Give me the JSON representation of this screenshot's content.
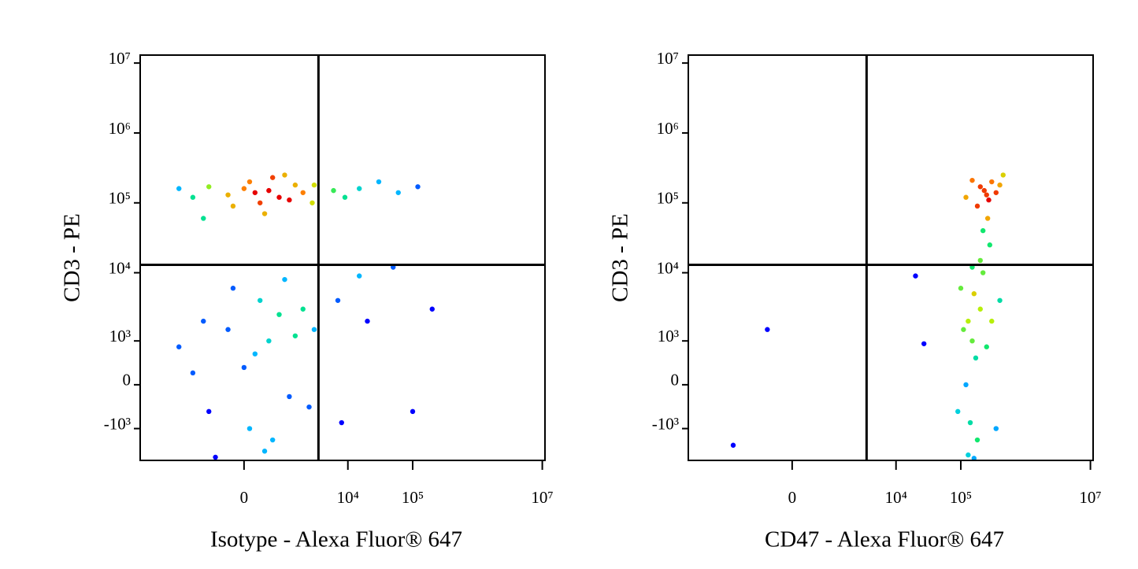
{
  "chart_data": [
    {
      "type": "scatter",
      "xlabel": "Isotype - Alexa Fluor® 647",
      "ylabel": "CD3 - PE",
      "xlim": [
        -10000,
        11000000
      ],
      "ylim": [
        -3000,
        13000000
      ],
      "xticks": [
        0,
        {
          "value": 10000,
          "label": "10⁴"
        },
        {
          "value": 100000,
          "label": "10⁵"
        },
        {
          "value": 10000000,
          "label": "10⁷"
        }
      ],
      "yticks": [
        {
          "value": 10000000,
          "label": "10⁷"
        },
        {
          "value": 1000000,
          "label": "10⁶"
        },
        {
          "value": 100000,
          "label": "10⁵"
        },
        {
          "value": 10000,
          "label": "10⁴"
        },
        {
          "value": 1000,
          "label": "10³"
        },
        0,
        {
          "value": -1000,
          "label": "-10³"
        }
      ],
      "gates": {
        "x": 3500,
        "y": 13000
      },
      "x": [
        200,
        500,
        -300,
        800,
        0,
        1200,
        -800,
        300,
        1500,
        -1500,
        2000,
        100,
        -200,
        600,
        -2500,
        2800,
        400,
        -1000,
        1000,
        3000,
        6000,
        15000,
        30000,
        60000,
        120000,
        9000,
        500,
        200,
        -300,
        800,
        0,
        1200,
        -800,
        300,
        1500,
        -1500,
        2000,
        100,
        -200,
        600,
        -2500,
        2500,
        400,
        -1000,
        1000,
        3000,
        7000,
        15000,
        20000,
        50000,
        8000,
        200000,
        100000,
        -600
      ],
      "y": [
        140000,
        150000,
        130000,
        120000,
        160000,
        110000,
        170000,
        100000,
        180000,
        120000,
        140000,
        200000,
        90000,
        230000,
        160000,
        100000,
        70000,
        60000,
        250000,
        180000,
        150000,
        160000,
        200000,
        140000,
        170000,
        120000,
        1000,
        600,
        1500,
        2500,
        300,
        -200,
        -500,
        4000,
        1200,
        200,
        3000,
        -1000,
        6000,
        -1500,
        800,
        -400,
        -2200,
        2000,
        8000,
        1500,
        4000,
        9000,
        2000,
        12000,
        -800,
        3000,
        -500,
        -2700
      ]
    },
    {
      "type": "scatter",
      "xlabel": "CD47 - Alexa Fluor® 647",
      "ylabel": "CD3 - PE",
      "xlim": [
        -10000,
        11000000
      ],
      "ylim": [
        -3000,
        13000000
      ],
      "xticks": [
        0,
        {
          "value": 10000,
          "label": "10⁴"
        },
        {
          "value": 100000,
          "label": "10⁵"
        },
        {
          "value": 10000000,
          "label": "10⁷"
        }
      ],
      "yticks": [
        {
          "value": 10000000,
          "label": "10⁷"
        },
        {
          "value": 1000000,
          "label": "10⁶"
        },
        {
          "value": 100000,
          "label": "10⁵"
        },
        {
          "value": 10000,
          "label": "10⁴"
        },
        {
          "value": 1000,
          "label": "10³"
        },
        0,
        {
          "value": -1000,
          "label": "-10³"
        }
      ],
      "gates": {
        "x": 3500,
        "y": 13000
      },
      "x": [
        -2000,
        -500,
        27000,
        20000,
        250000,
        230000,
        270000,
        200000,
        300000,
        180000,
        350000,
        150000,
        400000,
        260000,
        220000,
        280000,
        120000,
        450000,
        150000,
        130000,
        170000,
        120000,
        200000,
        140000,
        160000,
        110000,
        250000,
        180000,
        130000,
        300000,
        100000,
        220000,
        150000,
        400000,
        90000,
        350000,
        200000,
        160000
      ],
      "y": [
        -1800,
        1500,
        900,
        9000,
        130000,
        150000,
        110000,
        170000,
        200000,
        90000,
        140000,
        210000,
        180000,
        60000,
        40000,
        25000,
        120000,
        250000,
        1000,
        2000,
        500,
        0,
        3000,
        -800,
        5000,
        1500,
        800,
        -1500,
        -2500,
        2000,
        6000,
        10000,
        12000,
        4000,
        -500,
        -1000,
        15000,
        -2800
      ]
    }
  ]
}
